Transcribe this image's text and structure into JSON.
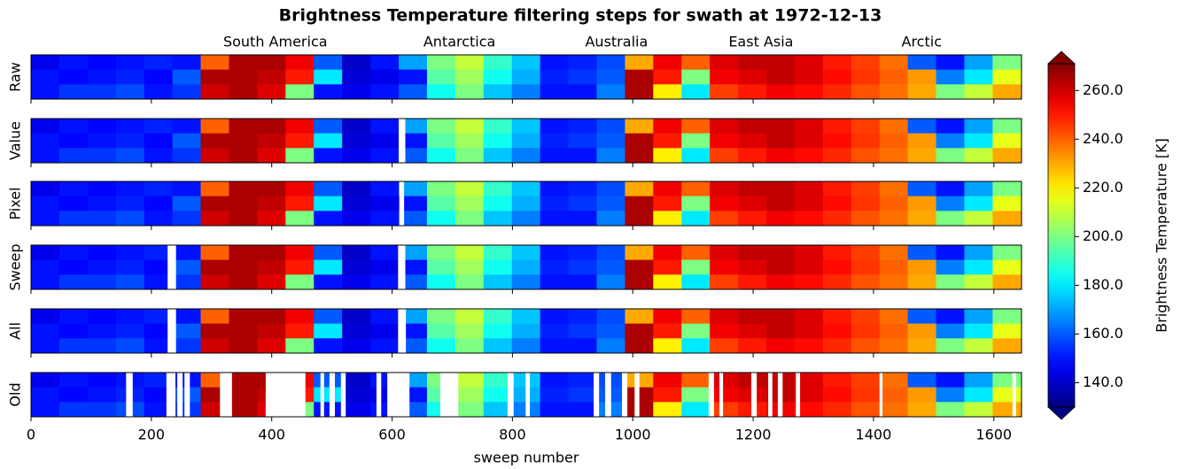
{
  "chart_data": {
    "type": "heatmap",
    "title": "Brightness Temperature filtering steps for swath at 1972-12-13",
    "xlabel": "sweep number",
    "colorbar_label": "Brightness Temperature [K]",
    "colormap": "jet",
    "xlim": [
      0,
      1646
    ],
    "xticks": [
      0,
      200,
      400,
      600,
      800,
      1000,
      1200,
      1400,
      1600
    ],
    "clim": [
      130,
      271
    ],
    "cticks": [
      {
        "value": 140,
        "label": "140.0"
      },
      {
        "value": 160,
        "label": "160.0"
      },
      {
        "value": 180,
        "label": "180.0"
      },
      {
        "value": 200,
        "label": "200.0"
      },
      {
        "value": 220,
        "label": "220.0"
      },
      {
        "value": 240,
        "label": "240.0"
      },
      {
        "value": 260,
        "label": "260.0"
      }
    ],
    "annotations": [
      {
        "text": "South America",
        "x": 406
      },
      {
        "text": "Antarctica",
        "x": 712
      },
      {
        "text": "Australia",
        "x": 973
      },
      {
        "text": "East Asia",
        "x": 1213
      },
      {
        "text": "Arctic",
        "x": 1480
      }
    ],
    "sweep_edges": [
      0,
      47,
      94,
      141,
      188,
      235,
      282,
      329,
      376,
      423,
      470,
      517,
      564,
      611,
      658,
      705,
      752,
      799,
      846,
      893,
      940,
      987,
      1034,
      1081,
      1128,
      1175,
      1222,
      1269,
      1316,
      1363,
      1410,
      1457,
      1504,
      1551,
      1598,
      1645
    ],
    "field": [
      [
        145,
        150,
        148,
        150,
        152,
        150,
        240,
        265,
        265,
        255,
        160,
        140,
        150,
        170,
        200,
        210,
        190,
        175,
        150,
        152,
        158,
        230,
        255,
        240,
        258,
        262,
        262,
        258,
        250,
        245,
        238,
        160,
        150,
        170,
        200
      ],
      [
        150,
        148,
        150,
        152,
        148,
        160,
        265,
        265,
        262,
        250,
        180,
        142,
        145,
        150,
        195,
        205,
        185,
        172,
        152,
        155,
        160,
        265,
        250,
        200,
        255,
        258,
        262,
        258,
        252,
        246,
        240,
        232,
        165,
        180,
        215
      ],
      [
        150,
        155,
        155,
        158,
        150,
        155,
        260,
        265,
        258,
        200,
        150,
        145,
        150,
        160,
        185,
        200,
        175,
        165,
        150,
        150,
        165,
        265,
        220,
        180,
        245,
        250,
        255,
        252,
        248,
        242,
        238,
        230,
        200,
        210,
        230
      ]
    ],
    "panels": [
      {
        "name": "Raw",
        "gaps": []
      },
      {
        "name": "Value",
        "gaps": [
          [
            611,
            622
          ]
        ]
      },
      {
        "name": "Pixel",
        "gaps": [
          [
            612,
            620
          ]
        ]
      },
      {
        "name": "Sweep",
        "gaps": [
          [
            227,
            241
          ],
          [
            610,
            622
          ]
        ]
      },
      {
        "name": "All",
        "gaps": [
          [
            227,
            241
          ],
          [
            610,
            623
          ]
        ]
      },
      {
        "name": "Old",
        "gaps": [
          [
            158,
            169
          ],
          [
            225,
            240
          ],
          [
            243,
            252
          ],
          [
            255,
            264
          ],
          [
            314,
            334
          ],
          [
            390,
            456
          ],
          [
            481,
            487
          ],
          [
            496,
            505
          ],
          [
            515,
            523
          ],
          [
            574,
            582
          ],
          [
            592,
            629
          ],
          [
            680,
            710
          ],
          [
            792,
            802
          ],
          [
            822,
            829
          ],
          [
            935,
            944
          ],
          [
            954,
            964
          ],
          [
            982,
            991
          ],
          [
            1003,
            1011
          ],
          [
            1126,
            1135
          ],
          [
            1144,
            1150
          ],
          [
            1197,
            1206
          ],
          [
            1225,
            1232
          ],
          [
            1241,
            1249
          ],
          [
            1271,
            1278
          ],
          [
            1410,
            1415
          ],
          [
            1631,
            1637
          ]
        ]
      }
    ]
  }
}
